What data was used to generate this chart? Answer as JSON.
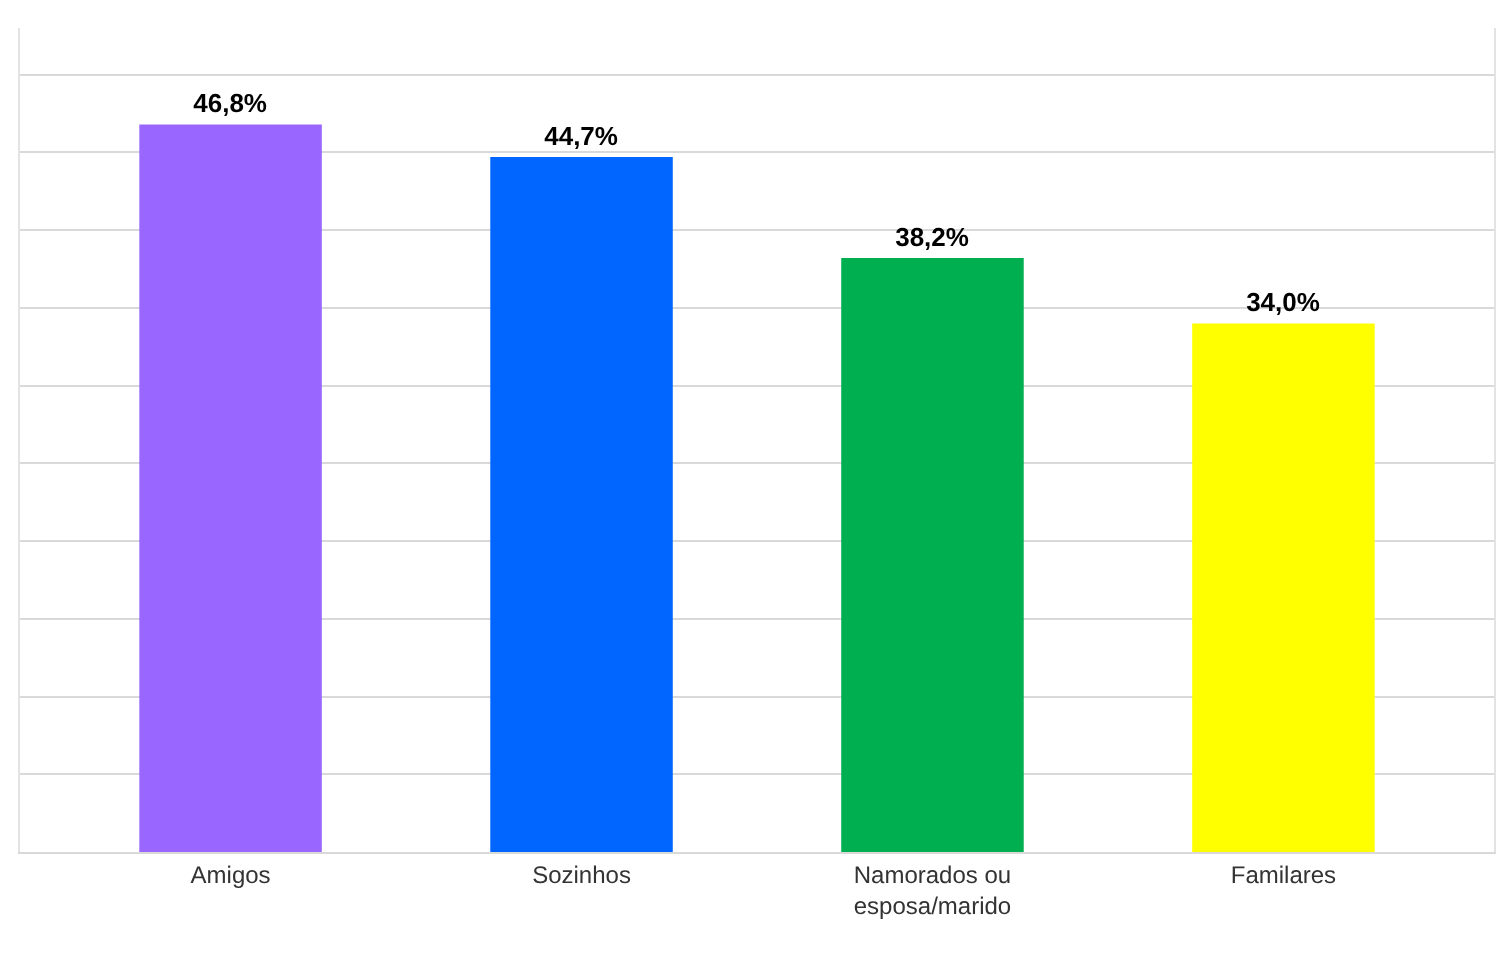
{
  "chart_data": {
    "type": "bar",
    "categories": [
      "Amigos",
      "Sozinhos",
      "Namorados ou esposa/marido",
      "Familares"
    ],
    "values": [
      46.8,
      44.7,
      38.2,
      34.0
    ],
    "colors": [
      "#9966ff",
      "#0066ff",
      "#00b050",
      "#ffff00"
    ],
    "value_labels": [
      "46,8%",
      "44,7%",
      "38,2%",
      "34,0%"
    ],
    "ylim": [
      0,
      53
    ],
    "yticks": [
      {
        "value": 0,
        "label": null
      },
      {
        "value": 5,
        "label": null
      },
      {
        "value": 10,
        "label": null
      },
      {
        "value": 15,
        "label": null
      },
      {
        "value": 20,
        "label": null
      },
      {
        "value": 25,
        "label": null
      },
      {
        "value": 30,
        "label": null
      },
      {
        "value": 35,
        "label": null
      },
      {
        "value": 40,
        "label": null
      },
      {
        "value": 45,
        "label": null
      },
      {
        "value": 50,
        "label": null
      }
    ],
    "grid": true,
    "tick_labels": "x",
    "legend": false
  }
}
